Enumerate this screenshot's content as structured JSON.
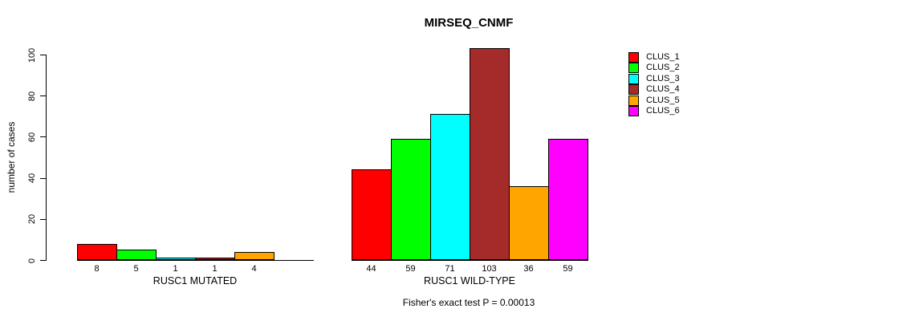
{
  "title": "MIRSEQ_CNMF",
  "y_axis": {
    "label": "number of cases"
  },
  "footer": "Fisher's exact test P = 0.00013",
  "legend": {
    "entries": [
      {
        "label": "CLUS_1",
        "color": "#FF0000"
      },
      {
        "label": "CLUS_2",
        "color": "#00FF00"
      },
      {
        "label": "CLUS_3",
        "color": "#00FFFF"
      },
      {
        "label": "CLUS_4",
        "color": "#A52A2A"
      },
      {
        "label": "CLUS_5",
        "color": "#FFA500"
      },
      {
        "label": "CLUS_6",
        "color": "#FF00FF"
      }
    ]
  },
  "chart_data": {
    "type": "bar",
    "title": "MIRSEQ_CNMF",
    "ylabel": "number of cases",
    "ylim": [
      0,
      100
    ],
    "yticks": [
      0,
      20,
      40,
      60,
      80,
      100
    ],
    "grid": false,
    "legend_position": "right",
    "clusters": [
      "CLUS_1",
      "CLUS_2",
      "CLUS_3",
      "CLUS_4",
      "CLUS_5",
      "CLUS_6"
    ],
    "palette": [
      "#FF0000",
      "#00FF00",
      "#00FFFF",
      "#A52A2A",
      "#FFA500",
      "#FF00FF"
    ],
    "groups": [
      {
        "label": "RUSC1 MUTATED",
        "values": [
          8,
          5,
          1,
          1,
          4,
          0
        ],
        "bar_labels": [
          "8",
          "5",
          "1",
          "1",
          "4",
          ""
        ]
      },
      {
        "label": "RUSC1 WILD-TYPE",
        "values": [
          44,
          59,
          71,
          103,
          36,
          59
        ],
        "bar_labels": [
          "44",
          "59",
          "71",
          "103",
          "36",
          "59"
        ]
      }
    ],
    "annotation": "Fisher's exact test P = 0.00013"
  }
}
